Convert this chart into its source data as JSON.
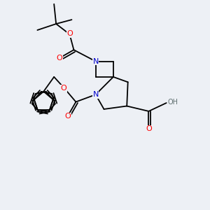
{
  "bg_color": "#edf0f5",
  "atom_colors": {
    "N": "#0000cc",
    "O": "#ff0000",
    "C": "#1a1a1a",
    "H": "#607070"
  },
  "bond_lw": 1.3,
  "fig_size": [
    3.0,
    3.0
  ],
  "dpi": 100,
  "xlim": [
    0,
    10
  ],
  "ylim": [
    0,
    10
  ]
}
